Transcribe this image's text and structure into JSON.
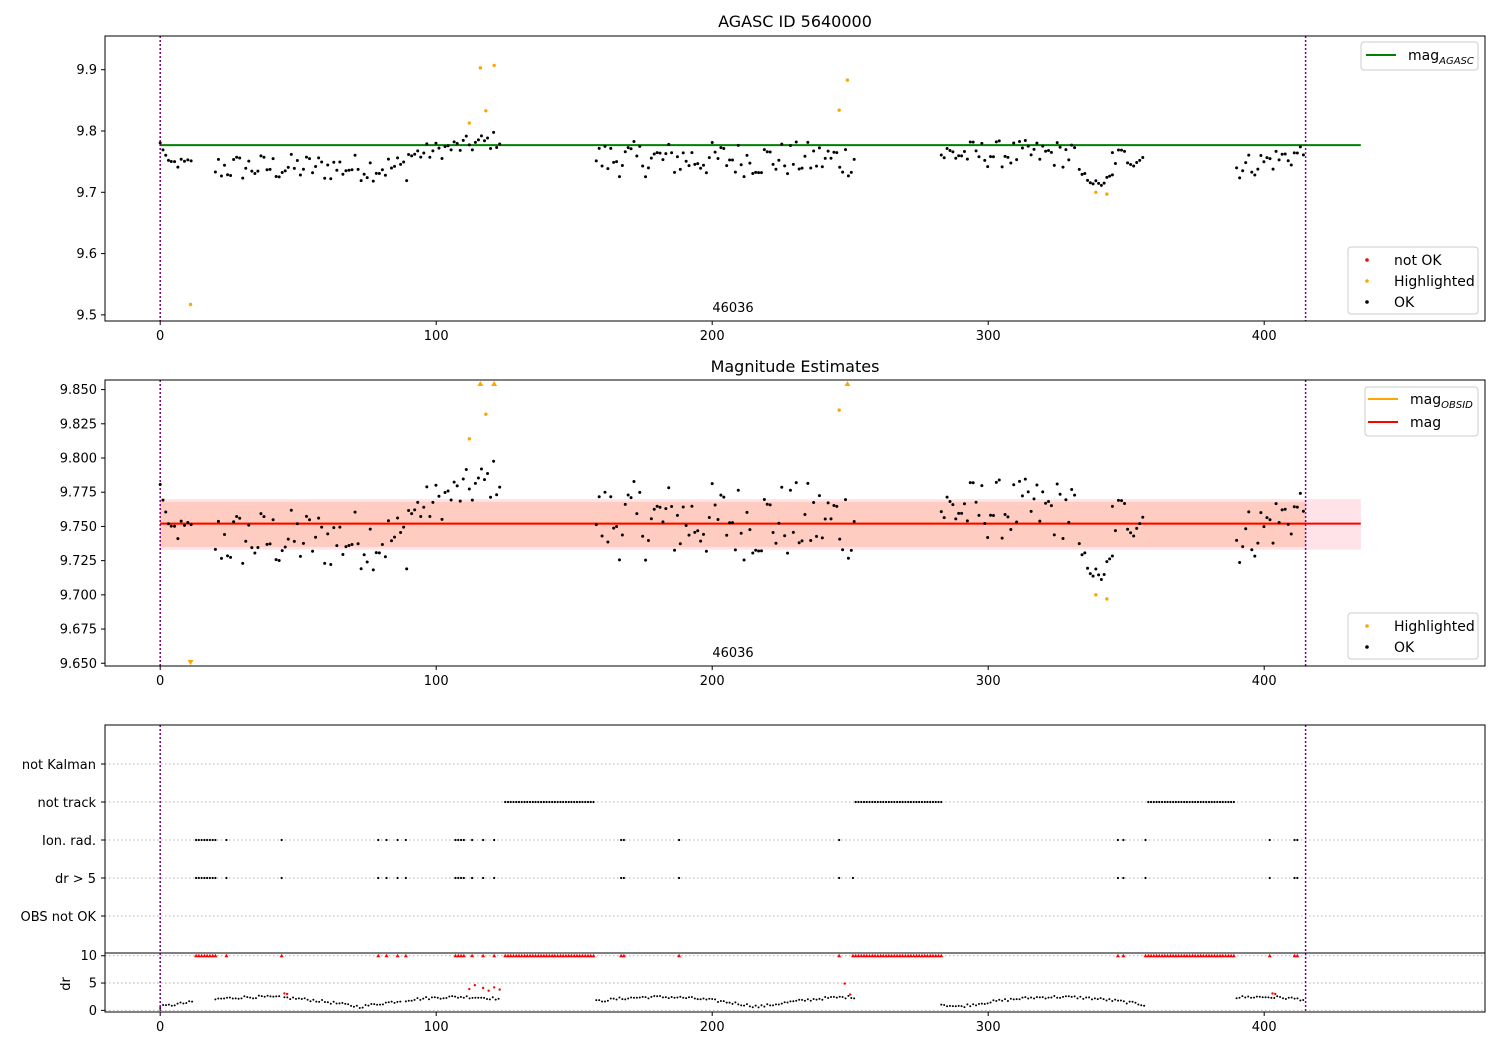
{
  "colors": {
    "ok": "#000000",
    "highlighted": "#ffa500",
    "not_ok": "#ff0000",
    "mag_agasc_line": "#008000",
    "mag_line": "#ff0000",
    "mag_obsid_line": "#ffa500",
    "band_outer": "#ffc0cb",
    "band_inner": "#ffa07a",
    "obs_boundary": "#800080",
    "grid": "#b0b0b0"
  },
  "chart_data": [
    {
      "id": "top",
      "type": "scatter",
      "title": "AGASC ID 5640000",
      "xlim": [
        -20,
        480
      ],
      "ylim": [
        9.49,
        9.955
      ],
      "xticks": [
        0,
        100,
        200,
        300,
        400
      ],
      "yticks": [
        9.5,
        9.6,
        9.7,
        9.8,
        9.9
      ],
      "ytick_labels": [
        "9.5",
        "9.6",
        "9.7",
        "9.8",
        "9.9"
      ],
      "obs_boundaries": [
        0,
        415
      ],
      "obsid_label": {
        "text": "46036",
        "x": 207
      },
      "mag_agasc": {
        "name": "mag",
        "sub": "AGASC",
        "value": 9.777,
        "x_range": [
          0,
          435
        ]
      },
      "legend_upper": [
        {
          "type": "line",
          "color_key": "mag_agasc_line",
          "label": "mag",
          "sub": "AGASC"
        }
      ],
      "legend_lower": [
        {
          "type": "dot",
          "color_key": "not_ok",
          "label": "not OK"
        },
        {
          "type": "dot",
          "color_key": "highlighted",
          "label": "Highlighted"
        },
        {
          "type": "dot",
          "color_key": "ok",
          "label": "OK"
        }
      ],
      "highlighted_points": [
        [
          11,
          9.517
        ],
        [
          112,
          9.813
        ],
        [
          116,
          9.903
        ],
        [
          118,
          9.833
        ],
        [
          121,
          9.907
        ],
        [
          246,
          9.834
        ],
        [
          249,
          9.883
        ],
        [
          339,
          9.7
        ],
        [
          343,
          9.697
        ]
      ]
    },
    {
      "id": "middle",
      "type": "scatter",
      "title": "Magnitude Estimates",
      "xlim": [
        -20,
        480
      ],
      "ylim": [
        9.648,
        9.857
      ],
      "xticks": [
        0,
        100,
        200,
        300,
        400
      ],
      "yticks": [
        9.65,
        9.675,
        9.7,
        9.725,
        9.75,
        9.775,
        9.8,
        9.825,
        9.85
      ],
      "ytick_labels": [
        "9.650",
        "9.675",
        "9.700",
        "9.725",
        "9.750",
        "9.775",
        "9.800",
        "9.825",
        "9.850"
      ],
      "obs_boundaries": [
        0,
        415
      ],
      "obsid_label": {
        "text": "46036",
        "x": 207
      },
      "mag": {
        "name": "mag",
        "value": 9.752,
        "band": [
          9.733,
          9.77
        ],
        "x_range": [
          0,
          435
        ]
      },
      "mag_obsid": {
        "name": "mag",
        "sub": "OBSID",
        "value": 9.752,
        "band": [
          9.735,
          9.768
        ],
        "x_range": [
          0,
          415
        ]
      },
      "legend_upper": [
        {
          "type": "line",
          "color_key": "mag_obsid_line",
          "label": "mag",
          "sub": "OBSID"
        },
        {
          "type": "line",
          "color_key": "mag_line",
          "label": "mag"
        }
      ],
      "legend_lower": [
        {
          "type": "dot",
          "color_key": "highlighted",
          "label": "Highlighted"
        },
        {
          "type": "dot",
          "color_key": "ok",
          "label": "OK"
        }
      ],
      "highlighted_points": [
        [
          112,
          9.814
        ],
        [
          118,
          9.832
        ],
        [
          246,
          9.835
        ],
        [
          339,
          9.7
        ],
        [
          343,
          9.697
        ]
      ],
      "clipped_points": [
        {
          "x": 11,
          "dir": "down"
        },
        {
          "x": 116,
          "dir": "up"
        },
        {
          "x": 121,
          "dir": "up"
        },
        {
          "x": 249,
          "dir": "up"
        }
      ]
    },
    {
      "id": "flags",
      "type": "scatter",
      "xlim": [
        -20,
        480
      ],
      "categories": [
        "not Kalman",
        "not track",
        "Ion. rad.",
        "dr > 5",
        "OBS not OK"
      ],
      "obs_boundaries": [
        0,
        415
      ],
      "not_track_ranges": [
        [
          125,
          157
        ],
        [
          252,
          283
        ],
        [
          358,
          389
        ]
      ],
      "ion_rad_x": [
        13,
        14,
        15,
        16,
        17,
        18,
        19,
        20,
        24,
        44,
        79,
        82,
        86,
        89,
        107,
        108,
        109,
        110,
        113,
        117,
        121,
        167,
        168,
        188,
        246,
        347,
        349,
        357,
        402,
        411,
        412
      ],
      "dr5_x": [
        13,
        14,
        15,
        16,
        17,
        18,
        19,
        20,
        24,
        44,
        79,
        82,
        86,
        89,
        107,
        108,
        109,
        110,
        113,
        117,
        121,
        167,
        168,
        188,
        246,
        251,
        347,
        349,
        357,
        402,
        411,
        412
      ]
    },
    {
      "id": "dr",
      "type": "scatter",
      "xlim": [
        -20,
        480
      ],
      "ylim": [
        -0.3,
        10.5
      ],
      "yticks": [
        0,
        5,
        10
      ],
      "ytick_labels": [
        "0",
        "5",
        "10"
      ],
      "xticks": [
        0,
        100,
        200,
        300,
        400
      ],
      "xtick_labels": [
        "0",
        "100",
        "200",
        "300",
        "400"
      ],
      "ylabel": "dr",
      "obs_boundaries": [
        0,
        415
      ],
      "not_ok_points_above5": [
        [
          45,
          3.1
        ],
        [
          46,
          3.0
        ],
        [
          112,
          3.9
        ],
        [
          114,
          4.6
        ],
        [
          117,
          4.1
        ],
        [
          119,
          3.6
        ],
        [
          121,
          4.2
        ],
        [
          123,
          3.8
        ],
        [
          248,
          4.9
        ],
        [
          250,
          2.9
        ],
        [
          403,
          3.1
        ],
        [
          404,
          3.0
        ]
      ]
    }
  ]
}
